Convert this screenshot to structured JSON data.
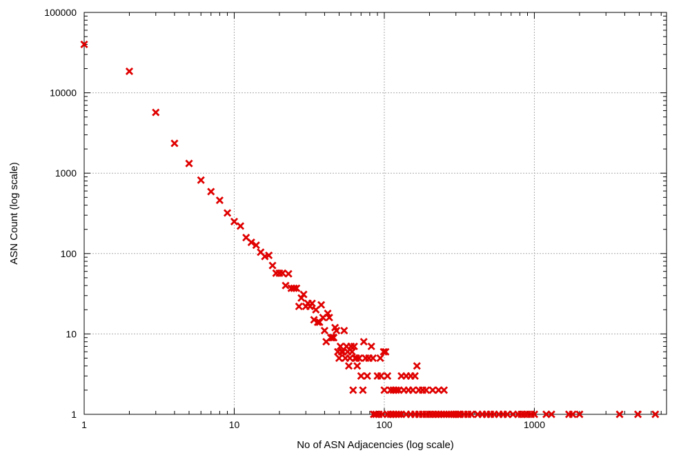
{
  "chart_data": {
    "type": "scatter",
    "xlabel": "No of ASN Adjacencies (log scale)",
    "ylabel": "ASN Count (log scale)",
    "xscale": "log",
    "yscale": "log",
    "xlim": [
      1,
      7600
    ],
    "ylim": [
      1,
      100000
    ],
    "x_ticks": [
      {
        "v": 1,
        "label": "1"
      },
      {
        "v": 10,
        "label": "10"
      },
      {
        "v": 100,
        "label": "100"
      },
      {
        "v": 1000,
        "label": "1000"
      }
    ],
    "y_ticks": [
      {
        "v": 1,
        "label": "1"
      },
      {
        "v": 10,
        "label": "10"
      },
      {
        "v": 100,
        "label": "100"
      },
      {
        "v": 1000,
        "label": "1000"
      },
      {
        "v": 10000,
        "label": "10000"
      },
      {
        "v": 100000,
        "label": "100000"
      }
    ],
    "grid": true,
    "marker_color": "#e00000",
    "points": [
      [
        1,
        40000
      ],
      [
        2,
        18500
      ],
      [
        3,
        5700
      ],
      [
        4,
        2350
      ],
      [
        5,
        1320
      ],
      [
        6,
        820
      ],
      [
        7,
        590
      ],
      [
        8,
        460
      ],
      [
        9,
        320
      ],
      [
        10,
        250
      ],
      [
        11,
        220
      ],
      [
        12,
        158
      ],
      [
        13,
        138
      ],
      [
        14,
        127
      ],
      [
        15,
        104
      ],
      [
        16,
        92
      ],
      [
        17,
        95
      ],
      [
        18,
        71
      ],
      [
        19,
        57
      ],
      [
        20,
        57
      ],
      [
        21,
        57
      ],
      [
        22,
        40
      ],
      [
        23,
        56
      ],
      [
        24,
        37
      ],
      [
        25,
        37
      ],
      [
        26,
        37
      ],
      [
        27,
        22
      ],
      [
        28,
        28
      ],
      [
        29,
        31
      ],
      [
        30,
        22
      ],
      [
        31,
        24
      ],
      [
        32,
        22
      ],
      [
        33,
        24
      ],
      [
        34,
        15
      ],
      [
        35,
        20
      ],
      [
        36,
        14
      ],
      [
        37,
        14
      ],
      [
        38,
        23
      ],
      [
        39,
        16
      ],
      [
        40,
        11
      ],
      [
        41,
        8
      ],
      [
        42,
        18
      ],
      [
        43,
        16
      ],
      [
        44,
        9
      ],
      [
        45,
        9
      ],
      [
        46,
        9
      ],
      [
        47,
        12
      ],
      [
        48,
        11
      ],
      [
        49,
        6
      ],
      [
        50,
        5
      ],
      [
        51,
        7
      ],
      [
        52,
        6
      ],
      [
        53,
        6
      ],
      [
        54,
        11
      ],
      [
        55,
        5
      ],
      [
        56,
        7
      ],
      [
        57,
        6
      ],
      [
        58,
        4
      ],
      [
        59,
        5
      ],
      [
        60,
        7
      ],
      [
        61,
        6
      ],
      [
        62,
        2
      ],
      [
        63,
        7
      ],
      [
        64,
        5
      ],
      [
        65,
        5
      ],
      [
        66,
        4
      ],
      [
        68,
        5
      ],
      [
        70,
        3
      ],
      [
        72,
        2
      ],
      [
        73,
        8
      ],
      [
        75,
        5
      ],
      [
        77,
        3
      ],
      [
        79,
        5
      ],
      [
        82,
        7
      ],
      [
        84,
        5
      ],
      [
        85,
        1
      ],
      [
        88,
        1
      ],
      [
        90,
        3
      ],
      [
        92,
        1
      ],
      [
        94,
        5
      ],
      [
        95,
        3
      ],
      [
        97,
        1
      ],
      [
        99,
        6
      ],
      [
        100,
        2
      ],
      [
        102,
        6
      ],
      [
        105,
        3
      ],
      [
        110,
        2
      ],
      [
        115,
        2
      ],
      [
        120,
        2
      ],
      [
        125,
        2
      ],
      [
        130,
        3
      ],
      [
        135,
        2
      ],
      [
        140,
        3
      ],
      [
        145,
        2
      ],
      [
        150,
        3
      ],
      [
        155,
        2
      ],
      [
        160,
        3
      ],
      [
        165,
        4
      ],
      [
        170,
        2
      ],
      [
        180,
        2
      ],
      [
        190,
        2
      ],
      [
        210,
        2
      ],
      [
        230,
        2
      ],
      [
        250,
        2
      ],
      [
        105,
        1
      ],
      [
        110,
        1
      ],
      [
        115,
        1
      ],
      [
        120,
        1
      ],
      [
        125,
        1
      ],
      [
        130,
        1
      ],
      [
        140,
        1
      ],
      [
        150,
        1
      ],
      [
        160,
        1
      ],
      [
        170,
        1
      ],
      [
        180,
        1
      ],
      [
        190,
        1
      ],
      [
        200,
        1
      ],
      [
        210,
        1
      ],
      [
        220,
        1
      ],
      [
        230,
        1
      ],
      [
        240,
        1
      ],
      [
        250,
        1
      ],
      [
        260,
        1
      ],
      [
        270,
        1
      ],
      [
        280,
        1
      ],
      [
        290,
        1
      ],
      [
        300,
        1
      ],
      [
        310,
        1
      ],
      [
        320,
        1
      ],
      [
        340,
        1
      ],
      [
        360,
        1
      ],
      [
        380,
        1
      ],
      [
        420,
        1
      ],
      [
        450,
        1
      ],
      [
        480,
        1
      ],
      [
        510,
        1
      ],
      [
        540,
        1
      ],
      [
        580,
        1
      ],
      [
        620,
        1
      ],
      [
        660,
        1
      ],
      [
        720,
        1
      ],
      [
        780,
        1
      ],
      [
        820,
        1
      ],
      [
        860,
        1
      ],
      [
        900,
        1
      ],
      [
        950,
        1
      ],
      [
        1000,
        1
      ],
      [
        1200,
        1
      ],
      [
        1300,
        1
      ],
      [
        1700,
        1
      ],
      [
        1800,
        1
      ],
      [
        2000,
        1
      ],
      [
        3700,
        1
      ],
      [
        4900,
        1
      ],
      [
        6400,
        1
      ]
    ]
  }
}
